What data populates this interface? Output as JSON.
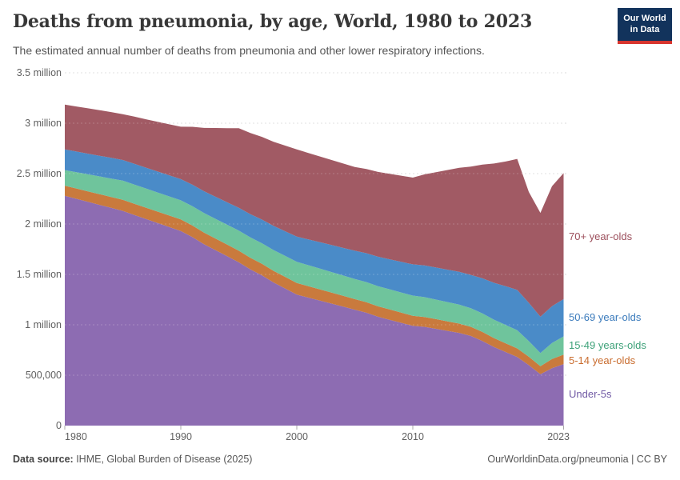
{
  "header": {
    "title": "Deaths from pneumonia, by age, World, 1980 to 2023",
    "subtitle": "The estimated annual number of deaths from pneumonia and other lower respiratory infections.",
    "logo": {
      "line1": "Our World",
      "line2": "in Data",
      "bg_color": "#12335c",
      "accent_color": "#d8352e"
    }
  },
  "footer": {
    "source_label": "Data source:",
    "source_text": " IHME, Global Burden of Disease (2025)",
    "credit": "OurWorldinData.org/pneumonia | CC BY"
  },
  "chart_data": {
    "type": "area",
    "stacked": true,
    "title": "Deaths from pneumonia, by age, World, 1980 to 2023",
    "unit": "deaths per year (millions)",
    "xlim": [
      1980,
      2023
    ],
    "ylim": [
      0,
      3.5
    ],
    "grid": "dashed-horizontal",
    "legend_position": "right-of-plot",
    "x": [
      1980,
      1981,
      1982,
      1983,
      1984,
      1985,
      1986,
      1987,
      1988,
      1989,
      1990,
      1991,
      1992,
      1993,
      1994,
      1995,
      1996,
      1997,
      1998,
      1999,
      2000,
      2001,
      2002,
      2003,
      2004,
      2005,
      2006,
      2007,
      2008,
      2009,
      2010,
      2011,
      2012,
      2013,
      2014,
      2015,
      2016,
      2017,
      2018,
      2019,
      2020,
      2021,
      2022,
      2023
    ],
    "series": [
      {
        "name": "Under-5s",
        "color": "#8d6cb2",
        "label_color": "#715aa5",
        "values": [
          2.28,
          2.25,
          2.22,
          2.19,
          2.16,
          2.13,
          2.09,
          2.05,
          2.01,
          1.97,
          1.93,
          1.87,
          1.8,
          1.74,
          1.68,
          1.62,
          1.55,
          1.49,
          1.42,
          1.36,
          1.3,
          1.27,
          1.24,
          1.21,
          1.18,
          1.15,
          1.12,
          1.08,
          1.05,
          1.02,
          0.99,
          0.98,
          0.96,
          0.94,
          0.92,
          0.89,
          0.84,
          0.78,
          0.73,
          0.68,
          0.6,
          0.51,
          0.57,
          0.61
        ]
      },
      {
        "name": "5-14 year-olds",
        "color": "#c97a3d",
        "label_color": "#c96c2e",
        "values": [
          0.1,
          0.102,
          0.104,
          0.106,
          0.108,
          0.11,
          0.111,
          0.112,
          0.113,
          0.114,
          0.115,
          0.115,
          0.115,
          0.115,
          0.115,
          0.115,
          0.115,
          0.115,
          0.115,
          0.115,
          0.115,
          0.113,
          0.111,
          0.109,
          0.107,
          0.105,
          0.104,
          0.103,
          0.102,
          0.101,
          0.1,
          0.098,
          0.096,
          0.094,
          0.092,
          0.09,
          0.089,
          0.088,
          0.087,
          0.086,
          0.083,
          0.08,
          0.09,
          0.095
        ]
      },
      {
        "name": "15-49 years-olds",
        "color": "#6fc49c",
        "label_color": "#3fa27a",
        "values": [
          0.155,
          0.162,
          0.169,
          0.176,
          0.183,
          0.19,
          0.19,
          0.19,
          0.19,
          0.19,
          0.19,
          0.192,
          0.194,
          0.196,
          0.198,
          0.2,
          0.202,
          0.204,
          0.206,
          0.208,
          0.21,
          0.208,
          0.206,
          0.204,
          0.202,
          0.2,
          0.2,
          0.2,
          0.2,
          0.2,
          0.2,
          0.197,
          0.194,
          0.191,
          0.188,
          0.185,
          0.184,
          0.183,
          0.182,
          0.18,
          0.155,
          0.13,
          0.16,
          0.18
        ]
      },
      {
        "name": "50-69 year-olds",
        "color": "#4a8bc8",
        "label_color": "#3b7bbc",
        "values": [
          0.205,
          0.205,
          0.205,
          0.205,
          0.205,
          0.205,
          0.206,
          0.207,
          0.208,
          0.209,
          0.21,
          0.213,
          0.216,
          0.219,
          0.222,
          0.225,
          0.23,
          0.235,
          0.24,
          0.245,
          0.25,
          0.256,
          0.262,
          0.268,
          0.274,
          0.28,
          0.286,
          0.292,
          0.298,
          0.304,
          0.31,
          0.314,
          0.318,
          0.322,
          0.326,
          0.33,
          0.348,
          0.366,
          0.384,
          0.4,
          0.38,
          0.36,
          0.365,
          0.37
        ]
      },
      {
        "name": "70+ year-olds",
        "color": "#a15a64",
        "label_color": "#9c4f5c",
        "values": [
          0.445,
          0.447,
          0.45,
          0.452,
          0.454,
          0.455,
          0.468,
          0.48,
          0.493,
          0.506,
          0.52,
          0.574,
          0.628,
          0.682,
          0.736,
          0.79,
          0.805,
          0.82,
          0.835,
          0.85,
          0.865,
          0.858,
          0.851,
          0.844,
          0.837,
          0.83,
          0.836,
          0.842,
          0.848,
          0.854,
          0.86,
          0.903,
          0.946,
          0.989,
          1.032,
          1.075,
          1.129,
          1.183,
          1.237,
          1.3,
          1.1,
          1.03,
          1.19,
          1.25
        ]
      }
    ],
    "y_ticks": [
      {
        "value": 3.5,
        "label": "3.5 million"
      },
      {
        "value": 3.0,
        "label": "3 million"
      },
      {
        "value": 2.5,
        "label": "2.5 million"
      },
      {
        "value": 2.0,
        "label": "2 million"
      },
      {
        "value": 1.5,
        "label": "1.5 million"
      },
      {
        "value": 1.0,
        "label": "1 million"
      },
      {
        "value": 0.5,
        "label": "500,000"
      },
      {
        "value": 0,
        "label": "0"
      }
    ],
    "x_ticks": [
      {
        "year": 1980,
        "label": "1980"
      },
      {
        "year": 1990,
        "label": "1990"
      },
      {
        "year": 2000,
        "label": "2000"
      },
      {
        "year": 2010,
        "label": "2010"
      },
      {
        "year": 2023,
        "label": "2023"
      }
    ]
  }
}
